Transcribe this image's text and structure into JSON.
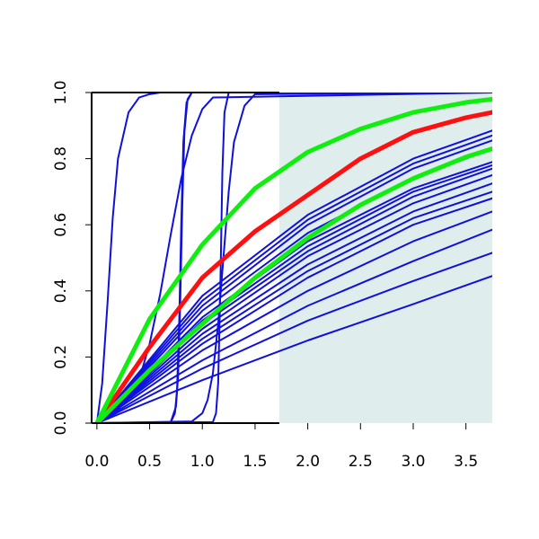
{
  "chart_data": {
    "type": "line",
    "title": "",
    "xlabel": "",
    "ylabel": "",
    "xlim": [
      -0.05,
      3.75
    ],
    "ylim": [
      0,
      1
    ],
    "grid": false,
    "x_ticks": [
      "0.0",
      "0.5",
      "1.0",
      "1.5",
      "2.0",
      "2.5",
      "3.0",
      "3.5"
    ],
    "y_ticks": [
      "0.0",
      "0.2",
      "0.4",
      "0.6",
      "0.8",
      "1.0"
    ],
    "shaded_region": {
      "x_from": 1.73,
      "x_to": 3.75,
      "color": "#e0eded"
    },
    "colors": {
      "blue": "#1010dd",
      "red": "#ff1010",
      "green": "#10ee10",
      "axis": "#000000"
    },
    "highlight_series": [
      {
        "color": "red",
        "x": [
          0,
          0.5,
          1,
          1.5,
          2,
          2.5,
          3,
          3.5,
          3.75
        ],
        "y": [
          0,
          0.23,
          0.44,
          0.58,
          0.69,
          0.8,
          0.88,
          0.924,
          0.94
        ]
      },
      {
        "color": "green",
        "x": [
          0,
          0.5,
          1,
          1.5,
          2,
          2.5,
          3,
          3.5,
          3.75
        ],
        "y": [
          0,
          0.315,
          0.54,
          0.71,
          0.82,
          0.89,
          0.94,
          0.97,
          0.98
        ]
      },
      {
        "color": "green",
        "x": [
          0,
          0.5,
          1,
          1.5,
          2,
          2.5,
          3,
          3.5,
          3.75
        ],
        "y": [
          0,
          0.16,
          0.3,
          0.44,
          0.56,
          0.66,
          0.74,
          0.805,
          0.83
        ]
      }
    ],
    "background_series": [
      {
        "x": [
          0,
          0.05,
          0.1,
          0.15,
          0.2,
          0.3,
          0.4,
          0.5,
          0.6,
          3.75
        ],
        "y": [
          0,
          0.12,
          0.36,
          0.62,
          0.8,
          0.94,
          0.985,
          0.995,
          1,
          1
        ]
      },
      {
        "x": [
          0,
          0.2,
          0.4,
          0.5,
          0.6,
          0.7,
          0.8,
          0.9,
          1.0,
          1.1,
          3.75
        ],
        "y": [
          0,
          0.04,
          0.13,
          0.24,
          0.39,
          0.57,
          0.74,
          0.87,
          0.95,
          0.985,
          1
        ]
      },
      {
        "x": [
          0,
          0.7,
          0.74,
          0.76,
          0.78,
          0.8,
          0.82,
          0.85,
          0.9,
          3.75
        ],
        "y": [
          0,
          0.002,
          0.03,
          0.1,
          0.3,
          0.6,
          0.85,
          0.97,
          1,
          1
        ]
      },
      {
        "x": [
          0,
          0.7,
          0.75,
          0.77,
          0.79,
          0.81,
          0.83,
          0.86,
          0.9,
          3.75
        ],
        "y": [
          0,
          0.003,
          0.05,
          0.14,
          0.36,
          0.66,
          0.88,
          0.98,
          1,
          1
        ]
      },
      {
        "x": [
          0,
          1.1,
          1.13,
          1.15,
          1.17,
          1.19,
          1.21,
          1.25,
          3.75
        ],
        "y": [
          0,
          0.003,
          0.03,
          0.12,
          0.4,
          0.76,
          0.94,
          1,
          1
        ]
      },
      {
        "x": [
          0,
          0.9,
          1.0,
          1.05,
          1.1,
          1.15,
          1.2,
          1.25,
          1.3,
          1.4,
          1.5,
          3.75
        ],
        "y": [
          0,
          0.005,
          0.03,
          0.07,
          0.15,
          0.3,
          0.5,
          0.7,
          0.85,
          0.96,
          0.995,
          1
        ]
      },
      {
        "x": [
          0,
          1,
          2,
          3,
          3.75
        ],
        "y": [
          0,
          0.385,
          0.63,
          0.8,
          0.885
        ]
      },
      {
        "x": [
          0,
          1,
          2,
          3,
          3.75
        ],
        "y": [
          0,
          0.37,
          0.615,
          0.785,
          0.87
        ]
      },
      {
        "x": [
          0,
          1,
          2,
          3,
          3.75
        ],
        "y": [
          0,
          0.355,
          0.6,
          0.77,
          0.855
        ]
      },
      {
        "x": [
          0,
          1,
          2,
          3,
          3.75
        ],
        "y": [
          0,
          0.34,
          0.575,
          0.74,
          0.83
        ]
      },
      {
        "x": [
          0,
          1,
          2,
          3,
          3.75
        ],
        "y": [
          0,
          0.32,
          0.55,
          0.71,
          0.79
        ]
      },
      {
        "x": [
          0,
          1,
          2,
          3,
          3.75
        ],
        "y": [
          0,
          0.31,
          0.535,
          0.7,
          0.78
        ]
      },
      {
        "x": [
          0,
          1,
          2,
          3,
          3.75
        ],
        "y": [
          0,
          0.3,
          0.52,
          0.685,
          0.77
        ]
      },
      {
        "x": [
          0,
          1,
          2,
          3,
          3.75
        ],
        "y": [
          0,
          0.285,
          0.505,
          0.665,
          0.75
        ]
      },
      {
        "x": [
          0,
          1,
          2,
          3,
          3.75
        ],
        "y": [
          0,
          0.27,
          0.48,
          0.64,
          0.725
        ]
      },
      {
        "x": [
          0,
          1,
          2,
          3,
          3.75
        ],
        "y": [
          0,
          0.255,
          0.46,
          0.62,
          0.7
        ]
      },
      {
        "x": [
          0,
          1,
          2,
          3,
          3.75
        ],
        "y": [
          0,
          0.24,
          0.44,
          0.6,
          0.68
        ]
      },
      {
        "x": [
          0,
          1,
          2,
          3,
          3.75
        ],
        "y": [
          0,
          0.22,
          0.4,
          0.55,
          0.64
        ]
      },
      {
        "x": [
          0,
          1,
          2,
          3,
          3.75
        ],
        "y": [
          0,
          0.19,
          0.355,
          0.49,
          0.585
        ]
      },
      {
        "x": [
          0,
          1,
          2,
          3,
          3.75
        ],
        "y": [
          0,
          0.165,
          0.31,
          0.43,
          0.515
        ]
      },
      {
        "x": [
          0,
          1,
          2,
          3,
          3.75
        ],
        "y": [
          0,
          0.13,
          0.25,
          0.36,
          0.445
        ]
      }
    ]
  }
}
